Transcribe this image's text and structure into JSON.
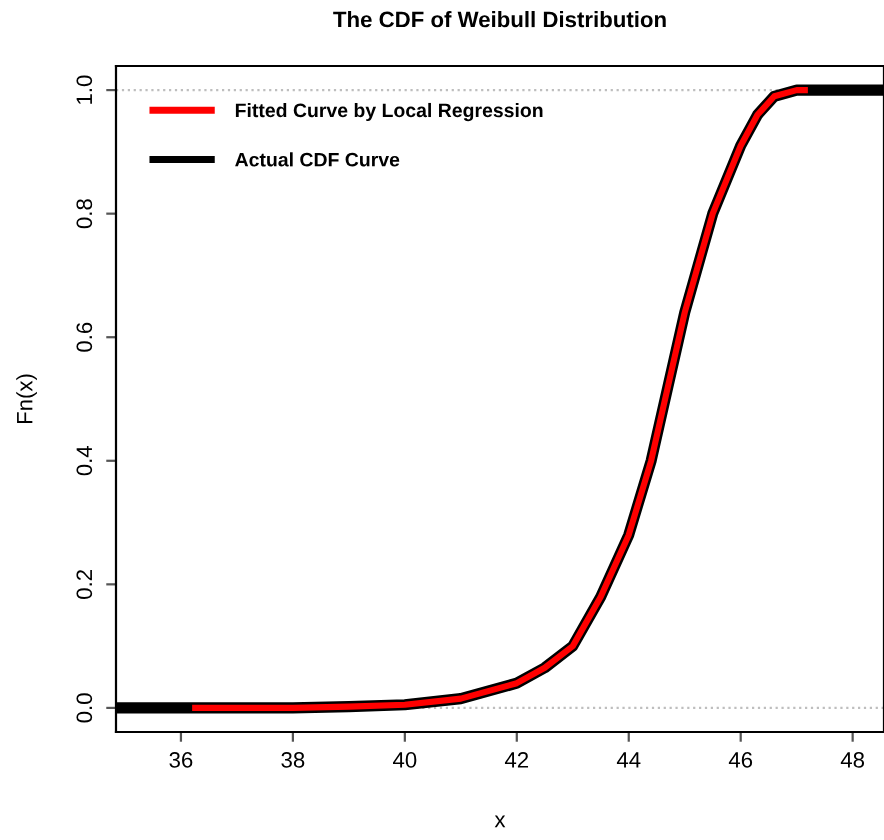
{
  "chart_data": {
    "type": "line",
    "title": "The CDF of Weibull Distribution",
    "xlabel": "x",
    "ylabel": "Fn(x)",
    "xlim": [
      34.84,
      48.56
    ],
    "ylim": [
      -0.039,
      1.039
    ],
    "xticks": [
      36,
      38,
      40,
      42,
      44,
      46,
      48
    ],
    "yticks": [
      {
        "value": 0,
        "label": "0.0"
      },
      0.2,
      0.4,
      0.6,
      0.8,
      {
        "value": 1,
        "label": "1.0"
      }
    ],
    "grid": false,
    "legend": "top left",
    "series": [
      {
        "name": "Actual CDF Curve",
        "color": "#000000",
        "x": [
          34.84,
          36,
          38,
          39,
          40,
          41,
          42,
          42.5,
          43,
          43.5,
          44,
          44.4,
          44.7,
          45,
          45.5,
          46,
          46.3,
          46.6,
          47,
          48,
          48.56
        ],
        "values": [
          0,
          0,
          0,
          0.002,
          0.005,
          0.015,
          0.04,
          0.065,
          0.1,
          0.18,
          0.28,
          0.4,
          0.52,
          0.64,
          0.8,
          0.91,
          0.96,
          0.99,
          1.0,
          1.0,
          1.0
        ]
      },
      {
        "name": "Fitted Curve by Local Regression",
        "color": "#ff0000",
        "x": [
          36.2,
          38,
          39,
          40,
          41,
          42,
          42.5,
          43,
          43.5,
          44,
          44.4,
          44.7,
          45,
          45.5,
          46,
          46.3,
          46.6,
          47,
          47.2
        ],
        "values": [
          0,
          0,
          0.002,
          0.005,
          0.015,
          0.04,
          0.065,
          0.1,
          0.18,
          0.28,
          0.4,
          0.52,
          0.64,
          0.8,
          0.91,
          0.96,
          0.99,
          1.0,
          1.0
        ]
      }
    ],
    "ref_lines": [
      {
        "axis": "y",
        "value": 0,
        "color": "#bebebe",
        "line_style": "dotted"
      },
      {
        "axis": "y",
        "value": 1,
        "color": "#bebebe",
        "line_style": "dotted"
      }
    ]
  }
}
